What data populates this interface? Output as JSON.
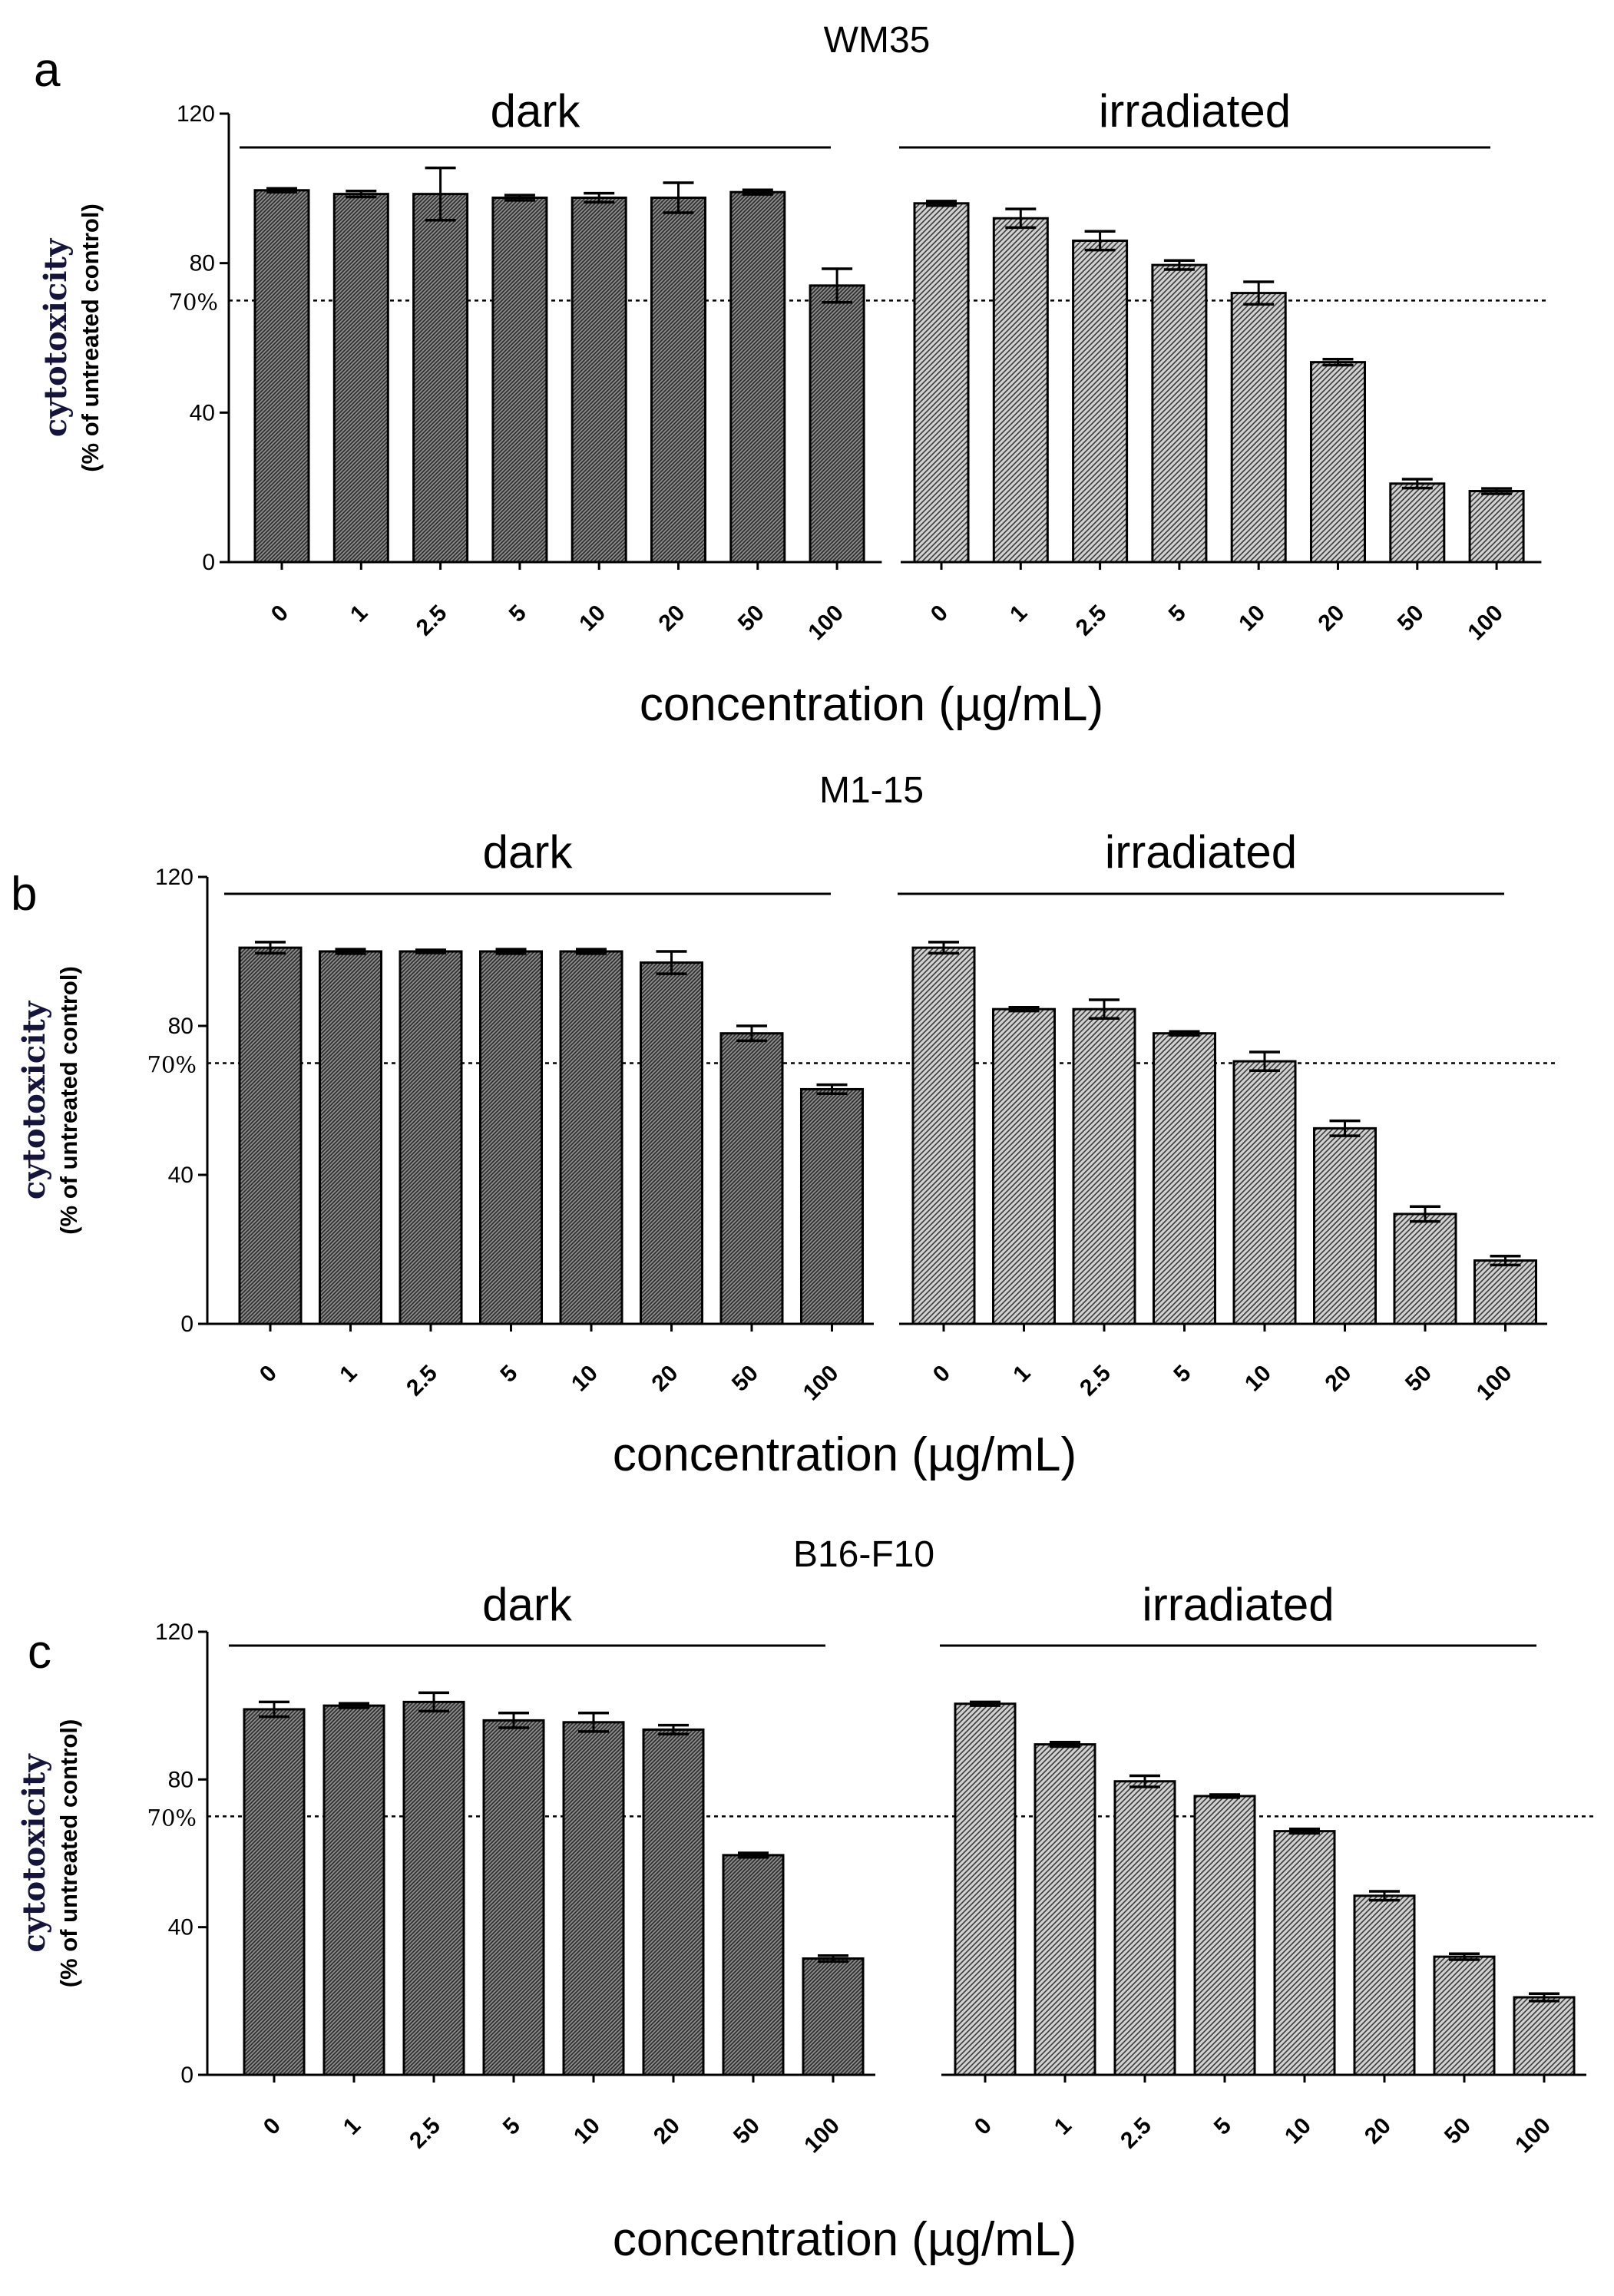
{
  "figure": {
    "threshold_label": "70%",
    "threshold_value": 70
  },
  "chart_data": [
    {
      "type": "bar",
      "panel_label": "a",
      "title": "WM35",
      "xlabel": "concentration (µg/mL)",
      "ylabel": "cytotoxicity",
      "ylabel_sub": "(% of untreated control)",
      "ylim": [
        0,
        120
      ],
      "yticks": [
        0,
        40,
        80,
        120
      ],
      "grid": false,
      "groups": [
        {
          "name": "dark",
          "categories": [
            "0",
            "1",
            "2.5",
            "5",
            "10",
            "20",
            "50",
            "100"
          ],
          "values": [
            99.5,
            98.5,
            98.5,
            97.5,
            97.5,
            97.5,
            99,
            74
          ],
          "errors": [
            0.5,
            0.8,
            7,
            0.7,
            1.2,
            4,
            0.6,
            4.5
          ]
        },
        {
          "name": "irradiated",
          "categories": [
            "0",
            "1",
            "2.5",
            "5",
            "10",
            "20",
            "50",
            "100"
          ],
          "values": [
            96,
            92,
            86,
            79.5,
            72,
            53.5,
            21,
            19
          ],
          "errors": [
            0.6,
            2.5,
            2.5,
            1.2,
            3,
            0.8,
            1.2,
            0.7
          ]
        }
      ]
    },
    {
      "type": "bar",
      "panel_label": "b",
      "title": "M1-15",
      "xlabel": "concentration (µg/mL)",
      "ylabel": "cytotoxicity",
      "ylabel_sub": "(% of untreated control)",
      "ylim": [
        0,
        120
      ],
      "yticks": [
        0,
        40,
        80,
        120
      ],
      "grid": false,
      "groups": [
        {
          "name": "dark",
          "categories": [
            "0",
            "1",
            "2.5",
            "5",
            "10",
            "20",
            "50",
            "100"
          ],
          "values": [
            101,
            100,
            100,
            100,
            100,
            97,
            78,
            63
          ],
          "errors": [
            1.5,
            0.6,
            0.4,
            0.6,
            0.6,
            3,
            2,
            1.2
          ]
        },
        {
          "name": "irradiated",
          "categories": [
            "0",
            "1",
            "2.5",
            "5",
            "10",
            "20",
            "50",
            "100"
          ],
          "values": [
            101,
            84.5,
            84.5,
            78,
            70.5,
            52.5,
            29.5,
            17
          ],
          "errors": [
            1.5,
            0.5,
            2.5,
            0.5,
            2.5,
            2,
            2,
            1.2
          ]
        }
      ]
    },
    {
      "type": "bar",
      "panel_label": "c",
      "title": "B16-F10",
      "xlabel": "concentration (µg/mL)",
      "ylabel": "cytotoxicity",
      "ylabel_sub": "(% of untreated control)",
      "ylim": [
        0,
        120
      ],
      "yticks": [
        0,
        40,
        80,
        120
      ],
      "grid": false,
      "groups": [
        {
          "name": "dark",
          "categories": [
            "0",
            "1",
            "2.5",
            "5",
            "10",
            "20",
            "50",
            "100"
          ],
          "values": [
            99,
            100,
            101,
            96,
            95.5,
            93.5,
            59.5,
            31.5
          ],
          "errors": [
            2,
            0.6,
            2.5,
            2,
            2.5,
            1.2,
            0.6,
            0.8
          ]
        },
        {
          "name": "irradiated",
          "categories": [
            "0",
            "1",
            "2.5",
            "5",
            "10",
            "20",
            "50",
            "100"
          ],
          "values": [
            100.5,
            89.5,
            79.5,
            75.5,
            66,
            48.5,
            32,
            21
          ],
          "errors": [
            0.5,
            0.6,
            1.5,
            0.4,
            0.6,
            1.2,
            0.8,
            1
          ]
        }
      ]
    }
  ]
}
